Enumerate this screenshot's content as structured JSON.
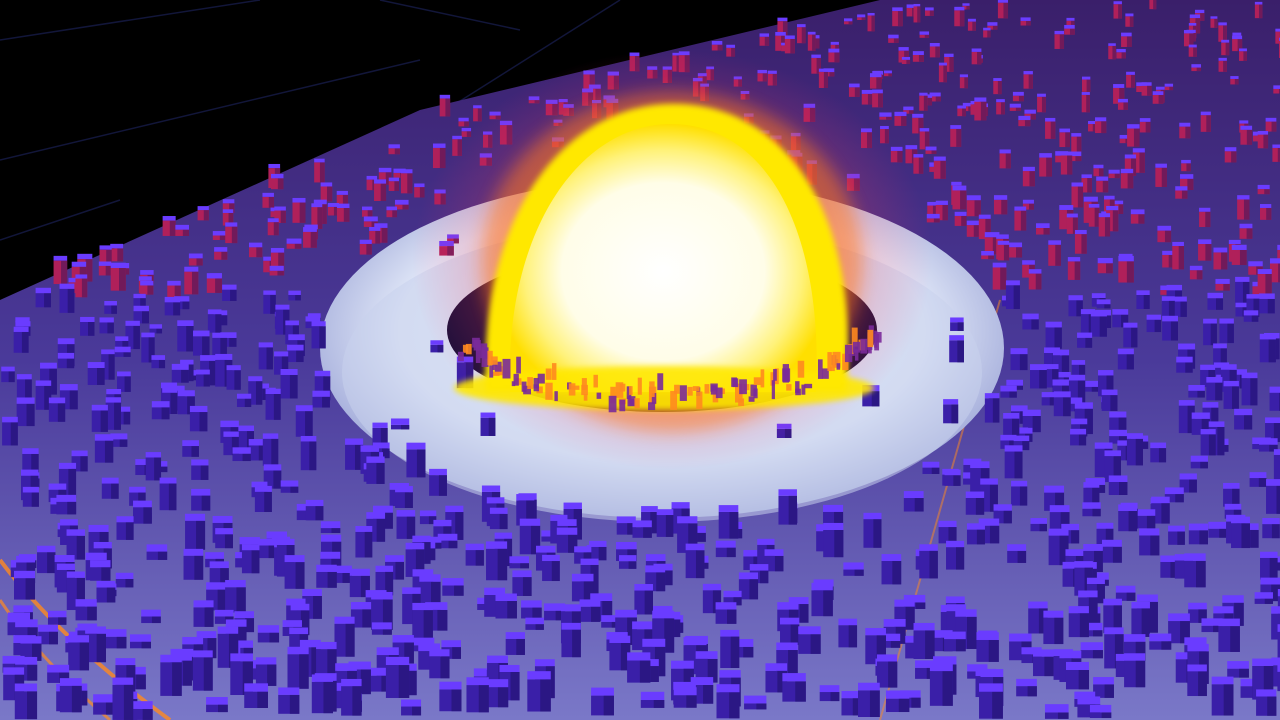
{
  "scene": {
    "description_visible_text": "",
    "colors": {
      "background": "#000000",
      "grid_line": "#12163a",
      "ground_base": "#2a1c6e",
      "building_top": "#6a3cff",
      "building_side_dark": "#3a1fa8",
      "building_side_red": "#b0205a",
      "ash_ring": "#d8e0f4",
      "fireball_core": "#ffffff",
      "fireball_rim": "#ffe800",
      "fireball_glow": "#ff7a1a",
      "ember_orange": "#ff8a1f"
    },
    "icons": {
      "fireball": "explosion-fireball-icon",
      "city": "voxel-city-icon"
    }
  }
}
